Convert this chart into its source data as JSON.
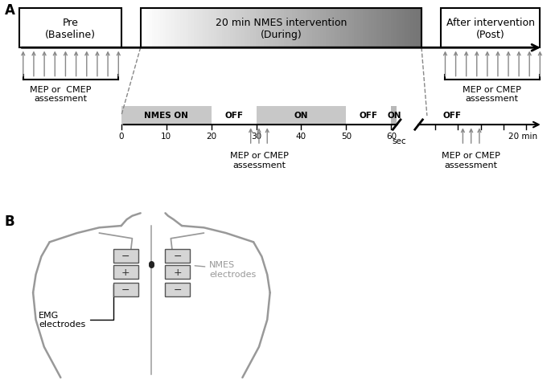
{
  "fig_width": 6.85,
  "fig_height": 4.89,
  "bg_color": "#ffffff",
  "label_A": "A",
  "label_B": "B",
  "box1_text": "Pre\n(Baseline)",
  "box2_text": "20 min NMES intervention\n(During)",
  "box3_text": "After intervention\n(Post)",
  "arrow_color": "#888888",
  "nmes_on_label": "NMES ON",
  "off_label": "OFF",
  "on_label": "ON",
  "sec_label": "sec",
  "min_label": "20 min",
  "mep_left": "MEP or  CMEP\nassessment",
  "mep_mid": "MEP or CMEP\nassessment",
  "mep_right": "MEP or CMEP\nassessment",
  "body_color": "#999999",
  "emg_text": "EMG\nelectrodes",
  "nmes_text": "NMES\nelectrodes"
}
